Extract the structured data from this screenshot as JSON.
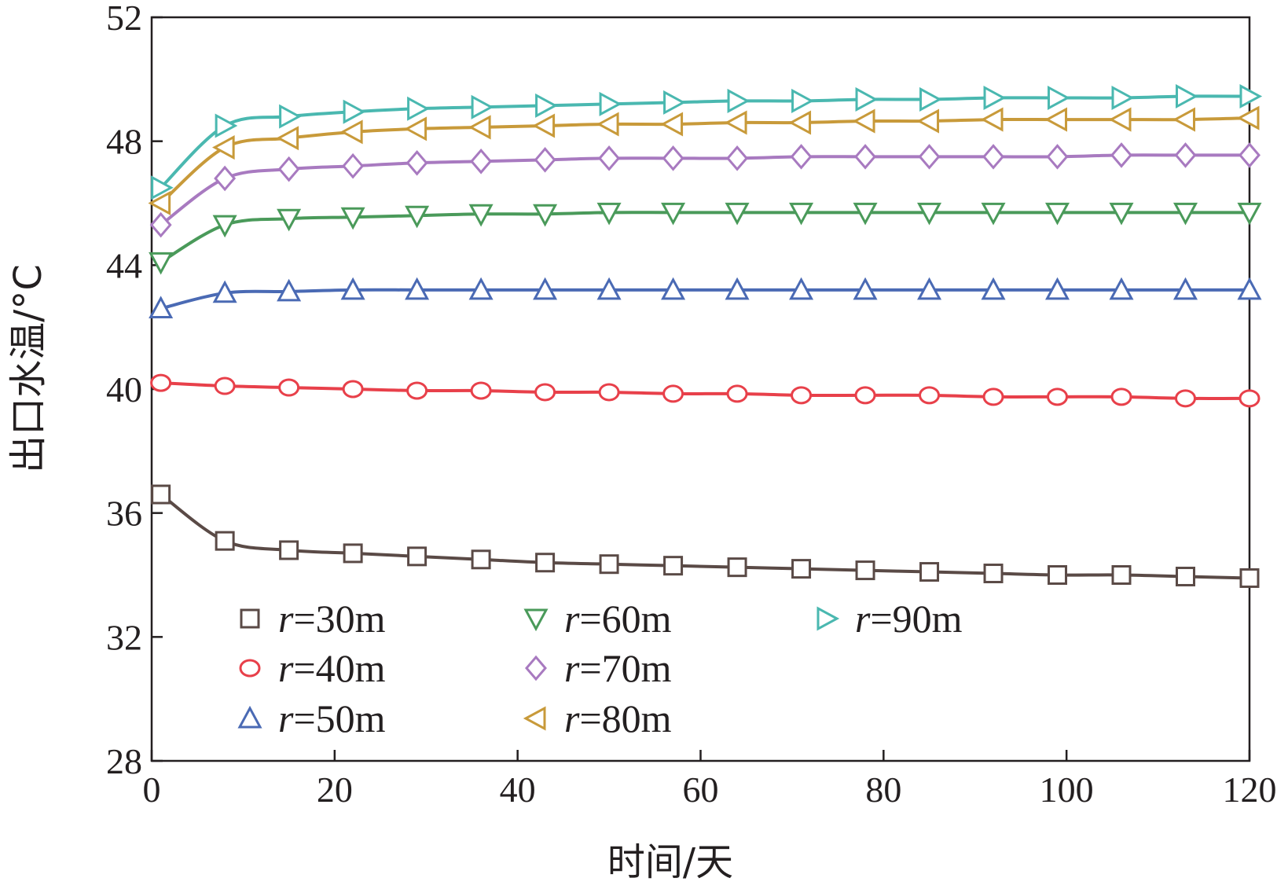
{
  "chart_data": {
    "type": "line",
    "title": "",
    "xlabel": "时间/天",
    "ylabel": "出口水温/°C",
    "xlim": [
      0,
      120
    ],
    "ylim": [
      28,
      52
    ],
    "xticks": [
      "0",
      "20",
      "40",
      "60",
      "80",
      "100",
      "120"
    ],
    "yticks": [
      "28",
      "32",
      "36",
      "40",
      "44",
      "48",
      "52"
    ],
    "grid": false,
    "legend_position": "bottom-left",
    "x": [
      1,
      8,
      15,
      22,
      29,
      36,
      43,
      50,
      57,
      64,
      71,
      78,
      85,
      92,
      99,
      106,
      113,
      120
    ],
    "series": [
      {
        "name": "r=30m",
        "radius": "30m",
        "marker": "square",
        "color": "#5a4a46",
        "values": [
          36.6,
          35.1,
          34.8,
          34.7,
          34.6,
          34.5,
          34.4,
          34.35,
          34.3,
          34.25,
          34.2,
          34.15,
          34.1,
          34.05,
          34.0,
          34.0,
          33.95,
          33.9
        ]
      },
      {
        "name": "r=40m",
        "radius": "40m",
        "marker": "circle",
        "color": "#e8404a",
        "values": [
          40.2,
          40.1,
          40.05,
          40.0,
          39.95,
          39.95,
          39.9,
          39.9,
          39.85,
          39.85,
          39.8,
          39.8,
          39.8,
          39.75,
          39.75,
          39.75,
          39.7,
          39.7
        ]
      },
      {
        "name": "r=50m",
        "radius": "50m",
        "marker": "triangle-up",
        "color": "#4a6ab4",
        "values": [
          42.6,
          43.1,
          43.15,
          43.2,
          43.2,
          43.2,
          43.2,
          43.2,
          43.2,
          43.2,
          43.2,
          43.2,
          43.2,
          43.2,
          43.2,
          43.2,
          43.2,
          43.2
        ]
      },
      {
        "name": "r=60m",
        "radius": "60m",
        "marker": "triangle-down",
        "color": "#4a9a5a",
        "values": [
          44.1,
          45.3,
          45.5,
          45.55,
          45.6,
          45.65,
          45.65,
          45.7,
          45.7,
          45.7,
          45.7,
          45.7,
          45.7,
          45.7,
          45.7,
          45.7,
          45.7,
          45.7
        ]
      },
      {
        "name": "r=70m",
        "radius": "70m",
        "marker": "diamond",
        "color": "#a87ac0",
        "values": [
          45.3,
          46.8,
          47.1,
          47.2,
          47.3,
          47.35,
          47.4,
          47.45,
          47.45,
          47.45,
          47.5,
          47.5,
          47.5,
          47.5,
          47.5,
          47.55,
          47.55,
          47.55
        ]
      },
      {
        "name": "r=80m",
        "radius": "80m",
        "marker": "triangle-left",
        "color": "#c89a3a",
        "values": [
          46.0,
          47.8,
          48.1,
          48.3,
          48.4,
          48.45,
          48.5,
          48.55,
          48.55,
          48.6,
          48.6,
          48.65,
          48.65,
          48.7,
          48.7,
          48.7,
          48.7,
          48.75
        ]
      },
      {
        "name": "r=90m",
        "radius": "90m",
        "marker": "triangle-right",
        "color": "#4ab8b0",
        "values": [
          46.5,
          48.5,
          48.8,
          48.95,
          49.05,
          49.1,
          49.15,
          49.2,
          49.25,
          49.3,
          49.3,
          49.35,
          49.35,
          49.4,
          49.4,
          49.4,
          49.45,
          49.45
        ]
      }
    ]
  }
}
